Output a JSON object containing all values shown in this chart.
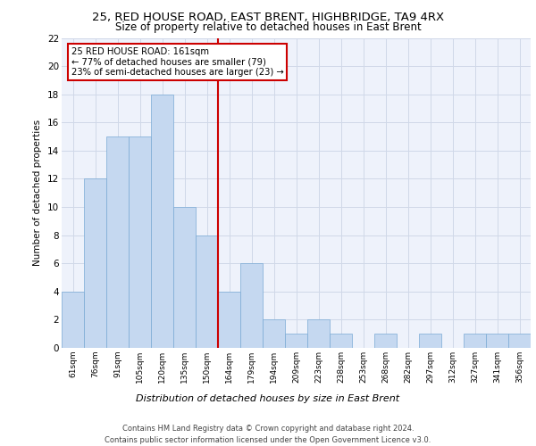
{
  "title1": "25, RED HOUSE ROAD, EAST BRENT, HIGHBRIDGE, TA9 4RX",
  "title2": "Size of property relative to detached houses in East Brent",
  "xlabel": "Distribution of detached houses by size in East Brent",
  "ylabel": "Number of detached properties",
  "bin_labels": [
    "61sqm",
    "76sqm",
    "91sqm",
    "105sqm",
    "120sqm",
    "135sqm",
    "150sqm",
    "164sqm",
    "179sqm",
    "194sqm",
    "209sqm",
    "223sqm",
    "238sqm",
    "253sqm",
    "268sqm",
    "282sqm",
    "297sqm",
    "312sqm",
    "327sqm",
    "341sqm",
    "356sqm"
  ],
  "bar_heights": [
    4,
    12,
    15,
    15,
    18,
    10,
    8,
    4,
    6,
    2,
    1,
    2,
    1,
    0,
    1,
    0,
    1,
    0,
    1,
    1,
    1
  ],
  "bar_color": "#c5d8f0",
  "bar_edge_color": "#7aaad4",
  "vline_color": "#cc0000",
  "annotation_text": "25 RED HOUSE ROAD: 161sqm\n← 77% of detached houses are smaller (79)\n23% of semi-detached houses are larger (23) →",
  "annotation_box_color": "#ffffff",
  "annotation_box_edge": "#cc0000",
  "ylim": [
    0,
    22
  ],
  "yticks": [
    0,
    2,
    4,
    6,
    8,
    10,
    12,
    14,
    16,
    18,
    20,
    22
  ],
  "grid_color": "#d0d8e8",
  "background_color": "#eef2fb",
  "footer1": "Contains HM Land Registry data © Crown copyright and database right 2024.",
  "footer2": "Contains public sector information licensed under the Open Government Licence v3.0."
}
